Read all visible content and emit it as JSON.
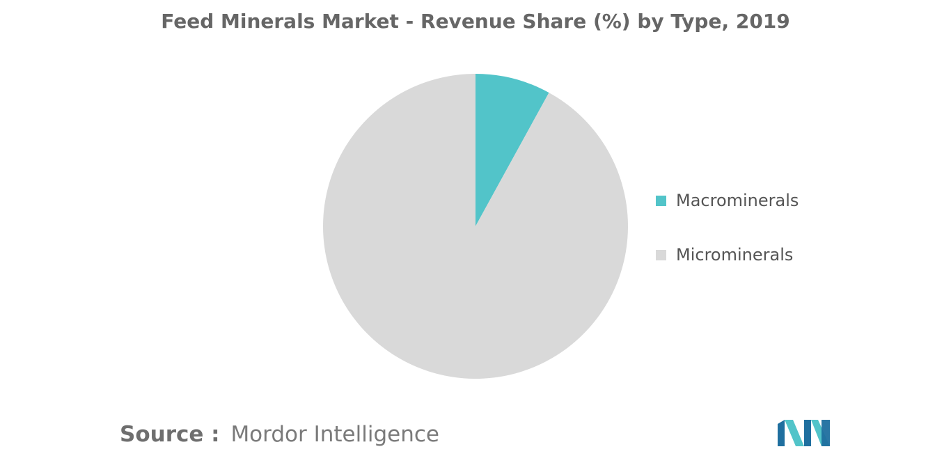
{
  "chart_data": {
    "type": "pie",
    "title": "Feed Minerals Market - Revenue Share (%) by Type, 2019",
    "categories": [
      "Macrominerals",
      "Microminerals"
    ],
    "values": [
      8,
      92
    ],
    "colors": [
      "#52c4c9",
      "#d9d9d9"
    ],
    "legend_position": "right",
    "start_angle": "12 o'clock, clockwise"
  },
  "source": {
    "label": "Source :",
    "name": "Mordor Intelligence"
  },
  "logo": {
    "icon": "mordor-intelligence-logo",
    "colors": [
      "#1f6f9f",
      "#52c4c9"
    ]
  }
}
